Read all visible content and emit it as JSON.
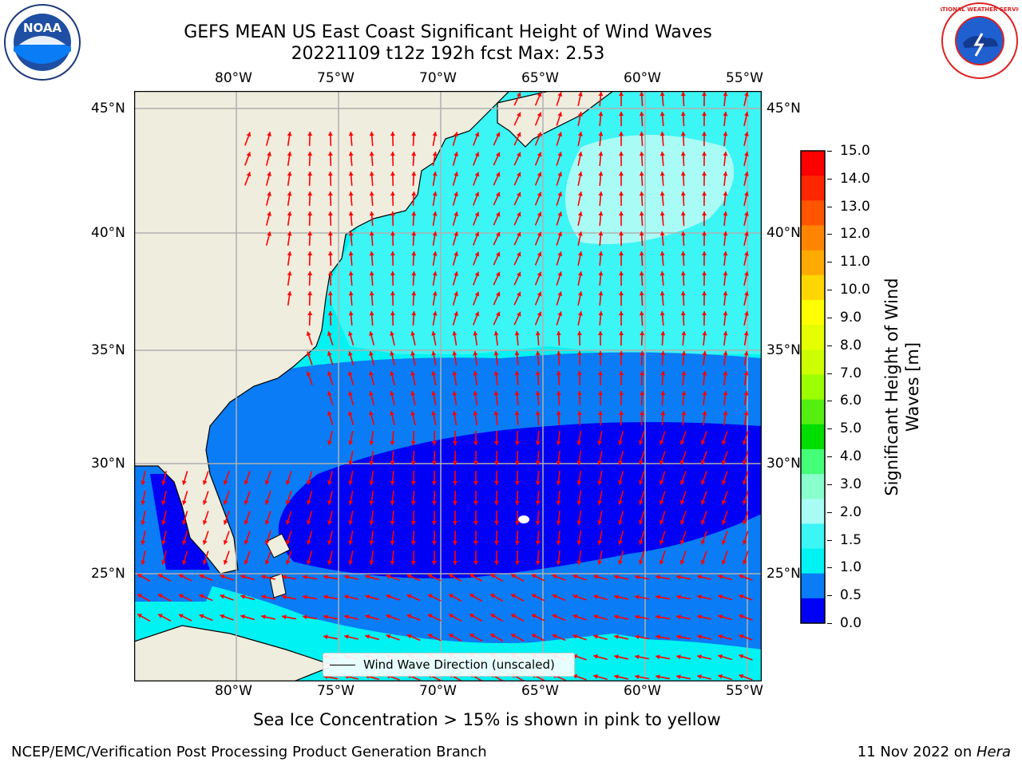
{
  "header": {
    "title_line1": "GEFS MEAN US East Coast Significant Height of Wind Waves",
    "title_line2": "20221109 t12z 192h fcst   Max: 2.53"
  },
  "logos": {
    "left": "NOAA",
    "right": "NATIONAL WEATHER SERVICE"
  },
  "map": {
    "lon_labels": [
      "80°W",
      "75°W",
      "70°W",
      "65°W",
      "60°W",
      "55°W"
    ],
    "lat_labels": [
      "45°N",
      "40°N",
      "35°N",
      "30°N",
      "25°N"
    ],
    "colors": {
      "land": "#efedde",
      "lt_0_5": "#0000f5",
      "lt_1_0": "#0a7cf5",
      "lt_1_5": "#00f2f2",
      "lt_2_0": "#3cf5f5",
      "lt_3_0": "#a8fcf5",
      "arrow": "#ff0000",
      "grid": "#b0b0b0"
    },
    "legend_text": "Wind Wave Direction (unscaled)"
  },
  "colorbar": {
    "ticks": [
      "15.0",
      "14.0",
      "13.0",
      "12.0",
      "11.0",
      "10.0",
      "9.0",
      "8.0",
      "7.0",
      "6.0",
      "5.0",
      "4.0",
      "3.0",
      "2.0",
      "1.5",
      "1.0",
      "0.5",
      "0.0"
    ],
    "colors": [
      "#ff0000",
      "#ff2600",
      "#ff5500",
      "#ff8500",
      "#ffaa00",
      "#ffd700",
      "#ffff00",
      "#e6ff00",
      "#ccff00",
      "#9bff00",
      "#55ee11",
      "#00dd00",
      "#44ff77",
      "#88ffcc",
      "#a8fcf5",
      "#3cf5f5",
      "#00f2f2",
      "#0a7cf5",
      "#0000f5"
    ],
    "title": "Significant Height of Wind Waves [m]"
  },
  "footer": {
    "sea_ice_note": "Sea Ice Concentration > 15% is shown in pink to yellow",
    "credit": "NCEP/EMC/Verification Post Processing Product Generation Branch",
    "date_prefix": "11 Nov 2022 on ",
    "machine": "Hera"
  }
}
